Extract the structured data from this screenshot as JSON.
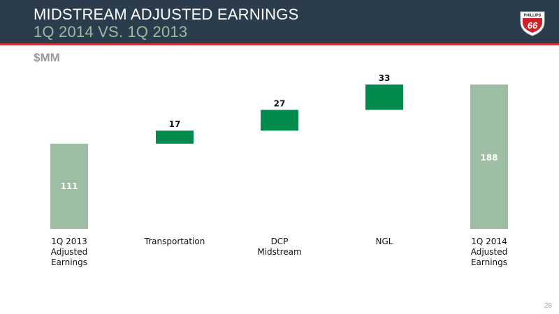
{
  "header": {
    "title": "MIDSTREAM ADJUSTED EARNINGS",
    "subtitle": "1Q 2014 VS. 1Q 2013"
  },
  "logo": {
    "text_top": "PHILLIPS",
    "text_main": "66"
  },
  "unit_label": "$MM",
  "page_number": "28",
  "colors": {
    "total_bar": "#9dbea3",
    "delta_bar": "#008a4b",
    "header_bg": "#2b3d4c",
    "header_line": "#d0303a"
  },
  "chart_data": {
    "type": "bar",
    "subtype": "waterfall",
    "categories": [
      [
        "1Q 2013",
        "Adjusted",
        "Earnings"
      ],
      [
        "Transportation"
      ],
      [
        "DCP",
        "Midstream"
      ],
      [
        "NGL"
      ],
      [
        "1Q 2014",
        "Adjusted",
        "Earnings"
      ]
    ],
    "values": [
      111,
      17,
      27,
      33,
      188
    ],
    "labels": [
      "111",
      "17",
      "27",
      "33",
      "188"
    ],
    "kinds": [
      "total",
      "delta",
      "delta",
      "delta",
      "total"
    ],
    "ylim": [
      0,
      210
    ]
  }
}
